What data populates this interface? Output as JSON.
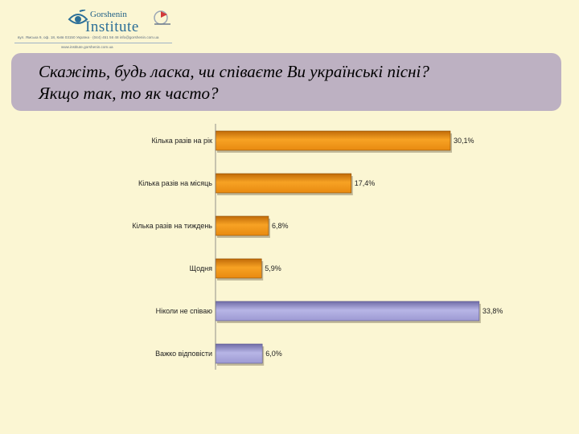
{
  "header": {
    "logo_name": "Gorshenin",
    "logo_institute": "Institute",
    "address_line_1": "вул. Ямська 9, оф. 18, Київ 03150 Україна · (044) 451 56 48 info@gorshenin.com.ua",
    "address_line_2": "www.institute.gorshenin.com.ua",
    "brand_color": "#2c6f98"
  },
  "title": {
    "line1": "Скажіть, будь ласка, чи співаєте Ви українські пісні?",
    "line2": "Якщо так, то як часто?"
  },
  "chart_data": {
    "type": "bar",
    "orientation": "horizontal",
    "categories": [
      "Кілька разів на рік",
      "Кілька разів на місяць",
      "Кілька разів на тиждень",
      "Щодня",
      "Ніколи не співаю",
      "Важко відповісти"
    ],
    "values": [
      30.1,
      17.4,
      6.8,
      5.9,
      33.8,
      6.0
    ],
    "value_labels": [
      "30,1%",
      "17,4%",
      "6,8%",
      "5,9%",
      "33,8%",
      "6,0%"
    ],
    "bar_colors": [
      "#f29a1c",
      "#f29a1c",
      "#f29a1c",
      "#f29a1c",
      "#a9a7dc",
      "#a9a7dc"
    ],
    "xlim": [
      0,
      35
    ],
    "grid": false,
    "legend": false
  }
}
